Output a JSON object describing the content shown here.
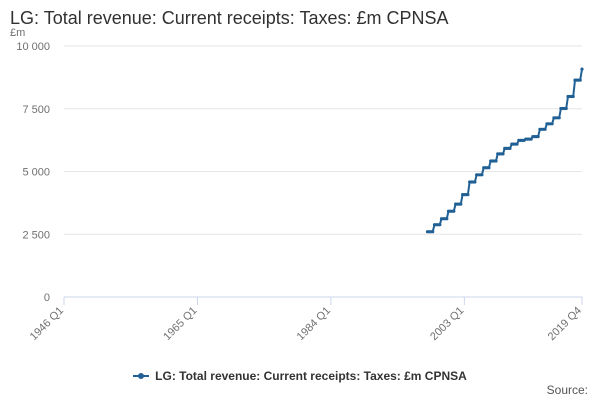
{
  "page": {
    "title": "LG: Total revenue: Current receipts: Taxes: £m CPNSA",
    "unit_label": "£m",
    "source_label": "Source:"
  },
  "colors": {
    "series": "#206095",
    "grid": "#e6e6e6",
    "axis": "#ccd6eb",
    "text": "#707070"
  },
  "chart_data": {
    "type": "line",
    "title": "LG: Total revenue: Current receipts: Taxes: £m CPNSA",
    "xlabel": "",
    "ylabel": "£m",
    "ylim": [
      0,
      10000
    ],
    "yticks": [
      0,
      2500,
      5000,
      7500,
      10000
    ],
    "ytick_labels": [
      "0",
      "2 500",
      "5 000",
      "7 500",
      "10 000"
    ],
    "x_range_index": [
      0,
      295
    ],
    "xticks": [
      {
        "label": "1946 Q1",
        "index": 0
      },
      {
        "label": "1965 Q1",
        "index": 76
      },
      {
        "label": "1984 Q1",
        "index": 152
      },
      {
        "label": "2003 Q1",
        "index": 228
      },
      {
        "label": "2019 Q4",
        "index": 295
      }
    ],
    "legend": "top-center below plot",
    "series": [
      {
        "name": "LG: Total revenue: Current receipts: Taxes: £m CPNSA",
        "x_start_index": 207,
        "x_start_label": "1997 Q4",
        "annual_values": [
          2600,
          2880,
          3120,
          3420,
          3700,
          4080,
          4580,
          4870,
          5150,
          5420,
          5700,
          5920,
          6090,
          6240,
          6290,
          6390,
          6680,
          6900,
          7140,
          7510,
          7990,
          8640,
          9080
        ]
      }
    ]
  }
}
